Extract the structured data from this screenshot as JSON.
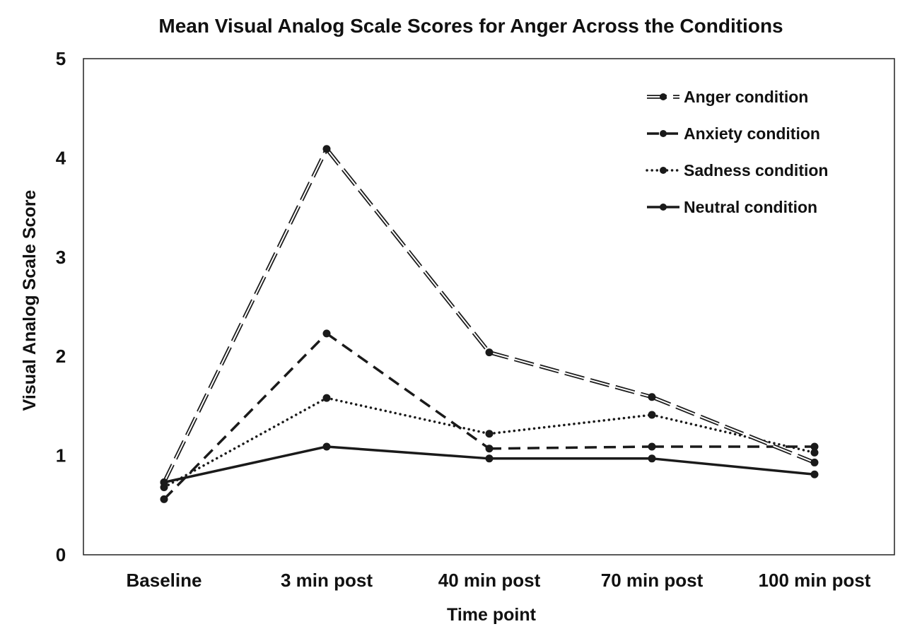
{
  "chart_data": {
    "type": "line",
    "title": "Mean Visual Analog Scale Scores for Anger Across the Conditions",
    "xlabel": "Time point",
    "ylabel": "Visual Analog Scale Score",
    "categories": [
      "Baseline",
      "3 min post",
      "40 min post",
      "70 min post",
      "100 min post"
    ],
    "ylim": [
      0,
      5
    ],
    "yticks": [
      0,
      1,
      2,
      3,
      4,
      5
    ],
    "grid": false,
    "legend_position": "top-right",
    "series": [
      {
        "name": "Anger condition",
        "style": "double-dashed",
        "values": [
          0.73,
          4.09,
          2.04,
          1.59,
          0.93
        ]
      },
      {
        "name": "Anxiety condition",
        "style": "dashed",
        "values": [
          0.56,
          2.23,
          1.07,
          1.09,
          1.09
        ]
      },
      {
        "name": "Sadness condition",
        "style": "dotted",
        "values": [
          0.68,
          1.58,
          1.22,
          1.41,
          1.03
        ]
      },
      {
        "name": "Neutral condition",
        "style": "solid",
        "values": [
          0.73,
          1.09,
          0.97,
          0.97,
          0.81
        ]
      }
    ]
  }
}
